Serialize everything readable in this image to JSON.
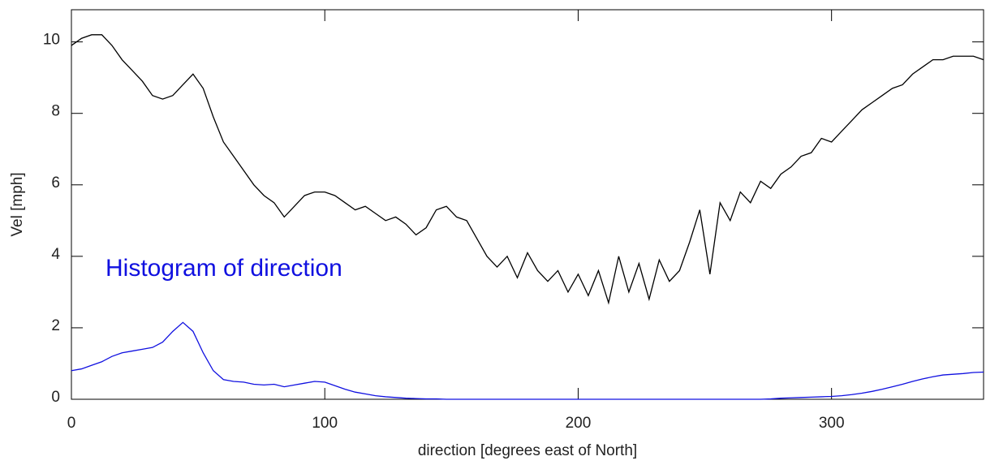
{
  "chart_data": {
    "type": "line",
    "xlabel": "direction [degrees east of North]",
    "ylabel": "Vel [mph]",
    "annotation": {
      "text": "Histogram of direction",
      "color": "#1010e0"
    },
    "x": [
      0,
      4,
      8,
      12,
      16,
      20,
      24,
      28,
      32,
      36,
      40,
      44,
      48,
      52,
      56,
      60,
      64,
      68,
      72,
      76,
      80,
      84,
      88,
      92,
      96,
      100,
      104,
      108,
      112,
      116,
      120,
      124,
      128,
      132,
      136,
      140,
      144,
      148,
      152,
      156,
      160,
      164,
      168,
      172,
      176,
      180,
      184,
      188,
      192,
      196,
      200,
      204,
      208,
      212,
      216,
      220,
      224,
      228,
      232,
      236,
      240,
      244,
      248,
      252,
      256,
      260,
      264,
      268,
      272,
      276,
      280,
      284,
      288,
      292,
      296,
      300,
      304,
      308,
      312,
      316,
      320,
      324,
      328,
      332,
      336,
      340,
      344,
      348,
      352,
      356,
      360
    ],
    "series": [
      {
        "color": "#000000",
        "values": [
          9.9,
          10.1,
          10.2,
          10.2,
          9.9,
          9.5,
          9.2,
          8.9,
          8.5,
          8.4,
          8.5,
          8.8,
          9.1,
          8.7,
          7.9,
          7.2,
          6.8,
          6.4,
          6.0,
          5.7,
          5.5,
          5.1,
          5.4,
          5.7,
          5.8,
          5.8,
          5.7,
          5.5,
          5.3,
          5.4,
          5.2,
          5.0,
          5.1,
          4.9,
          4.6,
          4.8,
          5.3,
          5.4,
          5.1,
          5.0,
          4.5,
          4.0,
          3.7,
          4.0,
          3.4,
          4.1,
          3.6,
          3.3,
          3.6,
          3.0,
          3.5,
          2.9,
          3.6,
          2.7,
          4.0,
          3.0,
          3.8,
          2.8,
          3.9,
          3.3,
          3.6,
          4.4,
          5.3,
          3.5,
          5.5,
          5.0,
          5.8,
          5.5,
          6.1,
          5.9,
          6.3,
          6.5,
          6.8,
          6.9,
          7.3,
          7.2,
          7.5,
          7.8,
          8.1,
          8.3,
          8.5,
          8.7,
          8.8,
          9.1,
          9.3,
          9.5,
          9.5,
          9.6,
          9.6,
          9.6,
          9.5
        ]
      },
      {
        "color": "#1010e0",
        "values": [
          0.8,
          0.85,
          0.95,
          1.05,
          1.2,
          1.3,
          1.35,
          1.4,
          1.45,
          1.6,
          1.9,
          2.15,
          1.9,
          1.3,
          0.8,
          0.55,
          0.5,
          0.48,
          0.42,
          0.4,
          0.42,
          0.35,
          0.4,
          0.45,
          0.5,
          0.48,
          0.38,
          0.28,
          0.2,
          0.15,
          0.1,
          0.07,
          0.05,
          0.03,
          0.02,
          0.01,
          0.01,
          0,
          0,
          0,
          0,
          0,
          0,
          0,
          0,
          0,
          0,
          0,
          0,
          0,
          0,
          0,
          0,
          0,
          0,
          0,
          0,
          0,
          0,
          0,
          0,
          0,
          0,
          0,
          0,
          0,
          0,
          0,
          0,
          0.01,
          0.03,
          0.04,
          0.05,
          0.06,
          0.07,
          0.08,
          0.1,
          0.13,
          0.17,
          0.22,
          0.28,
          0.35,
          0.42,
          0.5,
          0.57,
          0.63,
          0.68,
          0.7,
          0.72,
          0.75,
          0.76
        ]
      }
    ],
    "xlim": [
      0,
      360
    ],
    "xticks": [
      0,
      100,
      200,
      300
    ],
    "ylim": [
      0,
      10.9
    ],
    "yticks": [
      0,
      2,
      4,
      6,
      8,
      10
    ]
  }
}
